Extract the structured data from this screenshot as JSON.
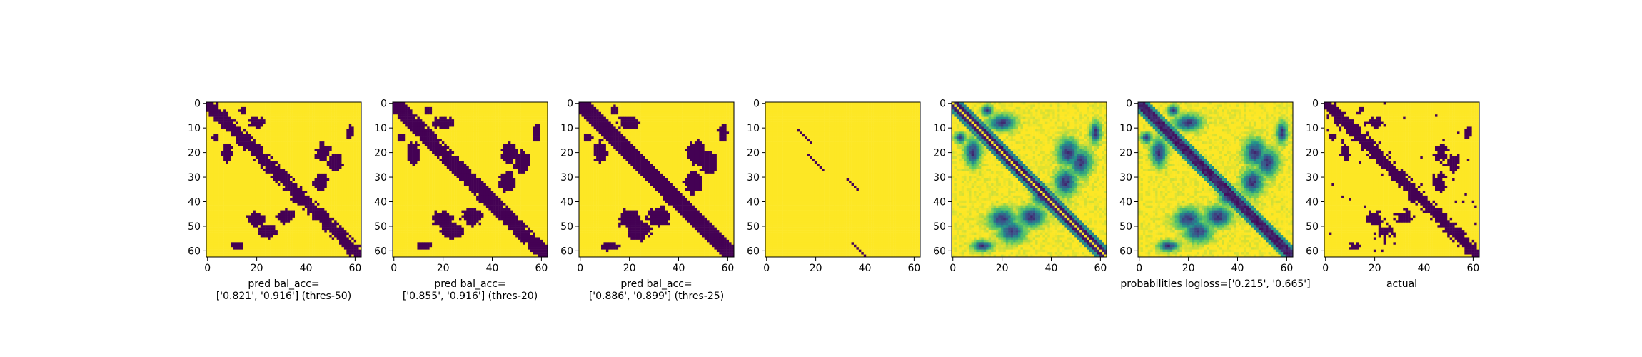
{
  "chart_data": [
    {
      "type": "heatmap",
      "title": "",
      "xlabel": [
        "pred bal_acc=",
        "['0.821', '0.916'] (thres-50)"
      ],
      "ylabel": "",
      "matrix_size": 63,
      "xlim": [
        0,
        62
      ],
      "ylim": [
        62,
        0
      ],
      "x_ticks": [
        "0",
        "20",
        "40",
        "60"
      ],
      "y_ticks": [
        "0",
        "10",
        "20",
        "30",
        "40",
        "50",
        "60"
      ],
      "colormap": "viridis",
      "value_range": [
        0,
        1
      ],
      "description_values": "binary prediction: 0 (dark) near main diagonal band and contact blobs, 1 (yellow) elsewhere"
    },
    {
      "type": "heatmap",
      "title": "",
      "xlabel": [
        "pred bal_acc=",
        "['0.855', '0.916'] (thres-20)"
      ],
      "ylabel": "",
      "matrix_size": 63,
      "xlim": [
        0,
        62
      ],
      "ylim": [
        62,
        0
      ],
      "x_ticks": [
        "0",
        "20",
        "40",
        "60"
      ],
      "y_ticks": [
        "0",
        "10",
        "20",
        "30",
        "40",
        "50",
        "60"
      ],
      "colormap": "viridis",
      "value_range": [
        0,
        1
      ]
    },
    {
      "type": "heatmap",
      "title": "",
      "xlabel": [
        "pred bal_acc=",
        "['0.886', '0.899'] (thres-25)"
      ],
      "ylabel": "",
      "matrix_size": 63,
      "xlim": [
        0,
        62
      ],
      "ylim": [
        62,
        0
      ],
      "x_ticks": [
        "0",
        "20",
        "40",
        "60"
      ],
      "y_ticks": [
        "0",
        "10",
        "20",
        "30",
        "40",
        "50",
        "60"
      ],
      "colormap": "viridis",
      "value_range": [
        0,
        1
      ]
    },
    {
      "type": "heatmap",
      "title": "",
      "xlabel": [
        "",
        ""
      ],
      "ylabel": "",
      "matrix_size": 63,
      "xlim": [
        0,
        62
      ],
      "ylim": [
        62,
        0
      ],
      "x_ticks": [
        "0",
        "20",
        "40",
        "60"
      ],
      "y_ticks": [
        "0",
        "10",
        "20",
        "30",
        "40",
        "50",
        "60"
      ],
      "colormap": "viridis",
      "value_range": [
        0,
        1
      ]
    },
    {
      "type": "heatmap",
      "title": "",
      "xlabel": [
        "",
        ""
      ],
      "ylabel": "",
      "matrix_size": 63,
      "xlim": [
        0,
        62
      ],
      "ylim": [
        62,
        0
      ],
      "x_ticks": [
        "0",
        "20",
        "40",
        "60"
      ],
      "y_ticks": [
        "0",
        "10",
        "20",
        "30",
        "40",
        "50",
        "60"
      ],
      "colormap": "viridis",
      "value_range": [
        0,
        1
      ]
    },
    {
      "type": "heatmap",
      "title": "",
      "xlabel": [
        "probabilities logloss=['0.215', '0.665']",
        ""
      ],
      "ylabel": "",
      "matrix_size": 63,
      "xlim": [
        0,
        62
      ],
      "ylim": [
        62,
        0
      ],
      "x_ticks": [
        "0",
        "20",
        "40",
        "60"
      ],
      "y_ticks": [
        "0",
        "10",
        "20",
        "30",
        "40",
        "50",
        "60"
      ],
      "colormap": "viridis",
      "value_range": [
        0,
        1
      ]
    },
    {
      "type": "heatmap",
      "title": "",
      "xlabel": [
        "actual",
        ""
      ],
      "ylabel": "",
      "matrix_size": 63,
      "xlim": [
        0,
        62
      ],
      "ylim": [
        62,
        0
      ],
      "x_ticks": [
        "0",
        "20",
        "40",
        "60"
      ],
      "y_ticks": [
        "0",
        "10",
        "20",
        "30",
        "40",
        "50",
        "60"
      ],
      "colormap": "viridis",
      "value_range": [
        0,
        1
      ]
    }
  ]
}
